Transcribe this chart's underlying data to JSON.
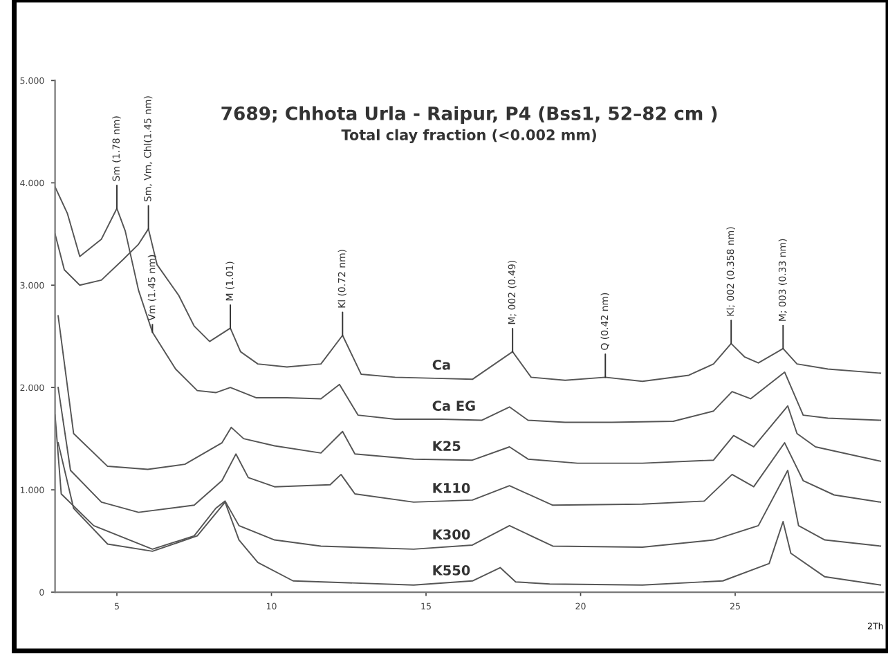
{
  "chart_data": {
    "type": "line",
    "title": "7689; Chhota Urla - Raipur, P4 (Bss1, 52–82 cm )",
    "subtitle": "Total clay fraction (<0.002 mm)",
    "xlabel": "2Th",
    "xlim": [
      3,
      29.8
    ],
    "xticks": [
      5,
      10,
      15,
      20,
      25
    ],
    "ylim": [
      0,
      5
    ],
    "yticks": [
      {
        "value": 0,
        "label": "0"
      },
      {
        "value": 1,
        "label": "1.000"
      },
      {
        "value": 2,
        "label": "2.000"
      },
      {
        "value": 3,
        "label": "3.000"
      },
      {
        "value": 4,
        "label": "4.000"
      },
      {
        "value": 5,
        "label": "5.000"
      }
    ],
    "grid": false,
    "legend": false,
    "marker": "none",
    "line_style": "solid",
    "series": [
      {
        "name": "Ca",
        "color": "#555555",
        "x": [
          3.0,
          3.3,
          3.8,
          4.5,
          5.2,
          5.7,
          6.02,
          6.3,
          7.0,
          7.5,
          8.0,
          8.67,
          9.0,
          9.56,
          10.5,
          11.6,
          12.3,
          12.9,
          14.0,
          15.3,
          16.5,
          17.8,
          18.4,
          19.5,
          20.8,
          22.0,
          23.5,
          24.3,
          24.87,
          25.3,
          25.75,
          26.55,
          27.0,
          28.0,
          29.7
        ],
        "values": [
          3.5,
          3.15,
          3.0,
          3.05,
          3.25,
          3.4,
          3.55,
          3.2,
          2.9,
          2.6,
          2.45,
          2.58,
          2.35,
          2.23,
          2.2,
          2.23,
          2.51,
          2.13,
          2.1,
          2.09,
          2.08,
          2.35,
          2.1,
          2.07,
          2.1,
          2.06,
          2.12,
          2.23,
          2.43,
          2.3,
          2.24,
          2.38,
          2.23,
          2.18,
          2.14
        ]
      },
      {
        "name": "Ca EG",
        "color": "#555555",
        "x": [
          3.0,
          3.4,
          3.8,
          4.5,
          5.0,
          5.27,
          5.7,
          6.15,
          6.9,
          7.6,
          8.2,
          8.67,
          9.5,
          10.5,
          11.6,
          12.2,
          12.8,
          14.0,
          15.5,
          16.8,
          17.7,
          18.3,
          19.5,
          21.0,
          23.0,
          24.3,
          24.9,
          25.5,
          26.6,
          27.2,
          28.0,
          29.7
        ],
        "values": [
          3.96,
          3.7,
          3.28,
          3.45,
          3.75,
          3.53,
          2.95,
          2.54,
          2.18,
          1.97,
          1.95,
          2.0,
          1.9,
          1.9,
          1.89,
          2.03,
          1.73,
          1.69,
          1.69,
          1.68,
          1.81,
          1.68,
          1.66,
          1.66,
          1.67,
          1.77,
          1.96,
          1.89,
          2.15,
          1.73,
          1.7,
          1.68
        ]
      },
      {
        "name": "K25",
        "color": "#555555",
        "x": [
          3.1,
          3.6,
          4.7,
          6.0,
          7.2,
          8.4,
          8.7,
          9.1,
          10.1,
          11.6,
          12.3,
          12.7,
          14.6,
          16.5,
          17.7,
          18.3,
          19.9,
          22.0,
          24.3,
          24.95,
          25.6,
          26.7,
          27.0,
          27.6,
          29.7
        ],
        "values": [
          2.7,
          1.55,
          1.23,
          1.2,
          1.25,
          1.46,
          1.61,
          1.5,
          1.43,
          1.36,
          1.57,
          1.35,
          1.3,
          1.29,
          1.42,
          1.3,
          1.26,
          1.26,
          1.29,
          1.53,
          1.42,
          1.82,
          1.55,
          1.42,
          1.28
        ]
      },
      {
        "name": "K110",
        "color": "#555555",
        "x": [
          3.1,
          3.5,
          4.5,
          5.7,
          7.5,
          8.4,
          8.85,
          9.25,
          10.1,
          11.9,
          12.25,
          12.7,
          14.6,
          16.5,
          17.7,
          19.1,
          22.0,
          24.0,
          24.9,
          25.6,
          26.6,
          27.2,
          28.2,
          29.7
        ],
        "values": [
          2.0,
          1.19,
          0.88,
          0.78,
          0.85,
          1.09,
          1.35,
          1.12,
          1.03,
          1.05,
          1.15,
          0.96,
          0.88,
          0.9,
          1.04,
          0.85,
          0.86,
          0.89,
          1.15,
          1.03,
          1.46,
          1.09,
          0.95,
          0.88
        ]
      },
      {
        "name": "K300",
        "color": "#555555",
        "x": [
          3.0,
          3.2,
          4.25,
          6.15,
          7.5,
          8.2,
          8.5,
          8.95,
          10.1,
          11.6,
          14.6,
          16.5,
          17.7,
          19.1,
          22.0,
          24.3,
          25.75,
          26.7,
          27.05,
          27.9,
          29.7
        ],
        "values": [
          1.73,
          0.96,
          0.65,
          0.42,
          0.55,
          0.82,
          0.89,
          0.65,
          0.51,
          0.45,
          0.42,
          0.46,
          0.65,
          0.45,
          0.44,
          0.51,
          0.65,
          1.19,
          0.65,
          0.51,
          0.45
        ]
      },
      {
        "name": "K550",
        "color": "#555555",
        "x": [
          3.1,
          3.6,
          4.7,
          6.15,
          7.6,
          8.5,
          8.95,
          9.56,
          10.7,
          14.6,
          16.5,
          17.4,
          17.9,
          19.0,
          22.0,
          24.6,
          26.1,
          26.55,
          26.8,
          27.9,
          29.7
        ],
        "values": [
          1.46,
          0.82,
          0.47,
          0.4,
          0.55,
          0.88,
          0.51,
          0.29,
          0.11,
          0.07,
          0.11,
          0.24,
          0.1,
          0.08,
          0.07,
          0.11,
          0.28,
          0.69,
          0.38,
          0.15,
          0.07
        ]
      }
    ],
    "annotations": [
      {
        "text": "Sm (1.78 nm)",
        "x": 5.0,
        "y": 3.75
      },
      {
        "text": "Sm, Vm, Chl(1.45 nm)",
        "x": 6.02,
        "y": 3.55
      },
      {
        "text": "Vm (1.45 nm)",
        "x": 6.15,
        "y": 2.54
      },
      {
        "text": "M (1.01)",
        "x": 8.67,
        "y": 2.58
      },
      {
        "text": "Kl (0.72 nm)",
        "x": 12.3,
        "y": 2.51
      },
      {
        "text": "M; 002 (0.49)",
        "x": 17.8,
        "y": 2.35
      },
      {
        "text": "Q (0.42 nm)",
        "x": 20.8,
        "y": 2.1
      },
      {
        "text": "Kl; 002 (0.358 nm)",
        "x": 24.87,
        "y": 2.43
      },
      {
        "text": "M; 003 (0.33 nm)",
        "x": 26.55,
        "y": 2.38
      }
    ]
  }
}
